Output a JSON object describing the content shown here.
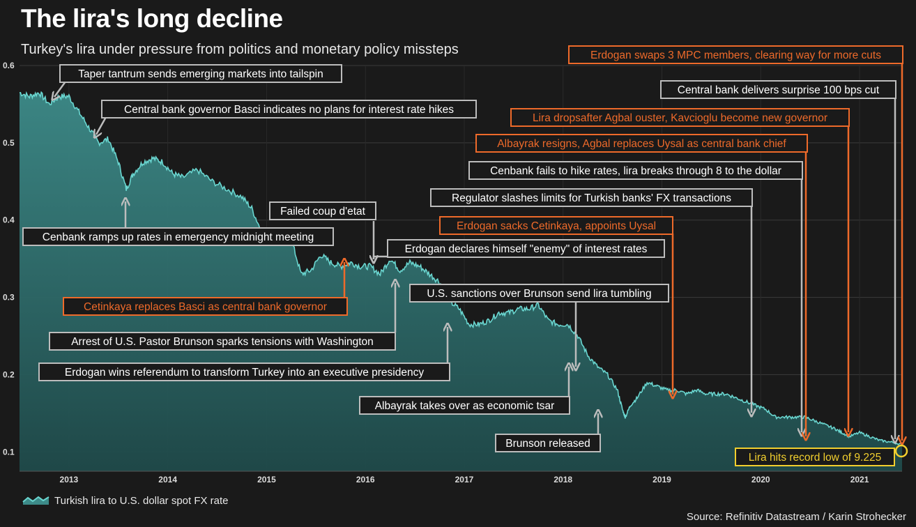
{
  "title": "The lira's long decline",
  "subtitle": "Turkey's lira under pressure from politics and monetary policy missteps",
  "source": "Source: Refinitiv Datastream / Karin Strohecker",
  "colors": {
    "line": "#6ad6d0",
    "area_top": "#3d8b89",
    "area_bottom": "#1f4a4a",
    "grey": "#bdbdbd",
    "orange": "#ee6a2a",
    "yellow": "#f2cf2e",
    "background": "#1a1a1a"
  },
  "chart_data": {
    "type": "area",
    "xlim": [
      2012.5,
      2021.43
    ],
    "ylim": [
      0.075,
      0.6
    ],
    "y_ticks": [
      0.1,
      0.2,
      0.3,
      0.4,
      0.5,
      0.6
    ],
    "y_tick_labels": [
      "0.1",
      "0.2",
      "0.3",
      "0.4",
      "0.5",
      "0.6"
    ],
    "x_ticks": [
      2013,
      2014,
      2015,
      2016,
      2017,
      2018,
      2019,
      2020,
      2021
    ],
    "x_tick_labels": [
      "2013",
      "2014",
      "2015",
      "2016",
      "2017",
      "2018",
      "2019",
      "2020",
      "2021"
    ],
    "legend": {
      "label": "Turkish lira to U.S. dollar spot FX rate",
      "position": "bottom-left"
    },
    "grid": true,
    "series": [
      {
        "name": "Turkish lira to U.S. dollar spot FX rate",
        "x": [
          2012.5,
          2012.6,
          2012.7,
          2012.8,
          2012.9,
          2013.0,
          2013.1,
          2013.2,
          2013.3,
          2013.4,
          2013.5,
          2013.58,
          2013.65,
          2013.75,
          2013.85,
          2013.95,
          2014.05,
          2014.15,
          2014.3,
          2014.45,
          2014.6,
          2014.75,
          2014.85,
          2014.95,
          2015.05,
          2015.15,
          2015.25,
          2015.35,
          2015.45,
          2015.55,
          2015.65,
          2015.75,
          2015.85,
          2015.95,
          2016.05,
          2016.15,
          2016.25,
          2016.35,
          2016.45,
          2016.55,
          2016.65,
          2016.75,
          2016.85,
          2016.95,
          2017.05,
          2017.15,
          2017.25,
          2017.35,
          2017.45,
          2017.55,
          2017.65,
          2017.75,
          2017.85,
          2017.95,
          2018.05,
          2018.15,
          2018.25,
          2018.35,
          2018.45,
          2018.55,
          2018.6,
          2018.63,
          2018.68,
          2018.75,
          2018.85,
          2018.95,
          2019.05,
          2019.15,
          2019.25,
          2019.35,
          2019.45,
          2019.55,
          2019.65,
          2019.75,
          2019.85,
          2019.95,
          2020.05,
          2020.15,
          2020.25,
          2020.35,
          2020.45,
          2020.55,
          2020.65,
          2020.75,
          2020.82,
          2020.9,
          2021.0,
          2021.1,
          2021.2,
          2021.3,
          2021.43
        ],
        "values": [
          0.565,
          0.56,
          0.565,
          0.55,
          0.56,
          0.56,
          0.54,
          0.52,
          0.5,
          0.505,
          0.475,
          0.44,
          0.46,
          0.475,
          0.48,
          0.475,
          0.46,
          0.455,
          0.465,
          0.45,
          0.44,
          0.43,
          0.415,
          0.385,
          0.38,
          0.375,
          0.375,
          0.33,
          0.335,
          0.355,
          0.345,
          0.34,
          0.345,
          0.34,
          0.34,
          0.33,
          0.35,
          0.335,
          0.345,
          0.34,
          0.33,
          0.32,
          0.295,
          0.285,
          0.265,
          0.265,
          0.27,
          0.28,
          0.28,
          0.285,
          0.285,
          0.29,
          0.27,
          0.265,
          0.265,
          0.25,
          0.225,
          0.21,
          0.2,
          0.18,
          0.155,
          0.145,
          0.16,
          0.17,
          0.19,
          0.185,
          0.18,
          0.18,
          0.175,
          0.18,
          0.175,
          0.175,
          0.175,
          0.17,
          0.165,
          0.16,
          0.155,
          0.145,
          0.145,
          0.145,
          0.145,
          0.14,
          0.135,
          0.13,
          0.125,
          0.12,
          0.125,
          0.12,
          0.115,
          0.113,
          0.11
        ]
      }
    ],
    "annotations": [
      {
        "text": "Taper tantrum sends emerging markets into tailspin",
        "color": "grey"
      },
      {
        "text": "Central bank governor Basci indicates no plans for interest rate hikes",
        "color": "grey"
      },
      {
        "text": "Cenbank ramps up rates in emergency midnight meeting",
        "color": "grey"
      },
      {
        "text": "Failed coup d'etat",
        "color": "grey"
      },
      {
        "text": "Erdogan declares himself \"enemy\" of interest rates",
        "color": "grey"
      },
      {
        "text": "Cetinkaya replaces Basci as central bank governor",
        "color": "orange"
      },
      {
        "text": "Arrest of U.S. Pastor Brunson sparks tensions with Washington",
        "color": "grey"
      },
      {
        "text": "Erdogan wins referendum to transform Turkey into an executive presidency",
        "color": "grey"
      },
      {
        "text": "U.S. sanctions over Brunson send lira tumbling",
        "color": "grey"
      },
      {
        "text": "Albayrak takes over as economic tsar",
        "color": "grey"
      },
      {
        "text": "Brunson released",
        "color": "grey"
      },
      {
        "text": "Erdogan sacks Cetinkaya, appoints Uysal",
        "color": "orange"
      },
      {
        "text": "Regulator slashes limits for Turkish banks' FX transactions",
        "color": "grey"
      },
      {
        "text": "Cenbank fails to hike rates, lira breaks through 8 to the dollar",
        "color": "grey"
      },
      {
        "text": "Albayrak resigns, Agbal replaces Uysal as central bank chief",
        "color": "orange"
      },
      {
        "text": "Lira dropsafter Agbal ouster, Kavcioglu become new governor",
        "color": "orange"
      },
      {
        "text": "Central bank delivers surprise 100 bps cut",
        "color": "grey"
      },
      {
        "text": "Erdogan swaps 3 MPC members, clearing way for more cuts",
        "color": "orange"
      },
      {
        "text": "Lira hits record low of 9.225",
        "color": "yellow"
      }
    ]
  }
}
